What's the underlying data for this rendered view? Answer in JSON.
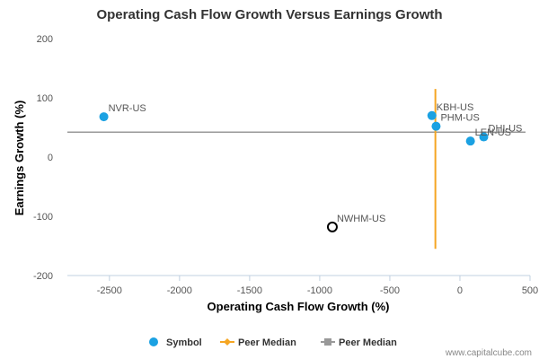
{
  "chart_data": {
    "type": "scatter",
    "title": "Operating Cash Flow Growth Versus Earnings Growth",
    "xlabel": "Operating Cash Flow Growth (%)",
    "ylabel": "Earnings Growth (%)",
    "xlim": [
      -2800,
      500
    ],
    "ylim": [
      -200,
      200
    ],
    "xticks": [
      -2500,
      -2000,
      -1500,
      -1000,
      -500,
      0,
      500
    ],
    "yticks": [
      200,
      100,
      0,
      -100,
      -200
    ],
    "xtick_labels": [
      "-2500",
      "-2000",
      "-1500",
      "-1000",
      "-500",
      "0",
      "500"
    ],
    "ytick_labels": [
      "200",
      "100",
      "0",
      "-100",
      "-200"
    ],
    "grid": false,
    "legend_position": "bottom",
    "points": [
      {
        "label": "NVR-US",
        "x": -2540,
        "y": 68
      },
      {
        "label": "KBH-US",
        "x": -200,
        "y": 70
      },
      {
        "label": "PHM-US",
        "x": -170,
        "y": 52
      },
      {
        "label": "DHI-US",
        "x": 170,
        "y": 34
      },
      {
        "label": "LEN-US",
        "x": 75,
        "y": 27
      },
      {
        "label": "NWHM-US",
        "x": -910,
        "y": -118
      }
    ],
    "highlighted_point": "NWHM-US",
    "peer_median_x": -175,
    "peer_median_y": 42,
    "peer_median_x_yrange": [
      -155,
      115
    ],
    "legend": [
      {
        "label": "Symbol",
        "color": "#1ba1e2",
        "marker": "circle"
      },
      {
        "label": "Peer Median",
        "color": "#f5a623",
        "marker": "line-diamond"
      },
      {
        "label": "Peer Median",
        "color": "#999999",
        "marker": "line-square"
      }
    ],
    "colors": {
      "symbol": "#1ba1e2",
      "peer_median_vertical": "#f5a623",
      "peer_median_horizontal": "#999999",
      "highlight_stroke": "#000000"
    }
  },
  "watermark": "www.capitalcube.com"
}
